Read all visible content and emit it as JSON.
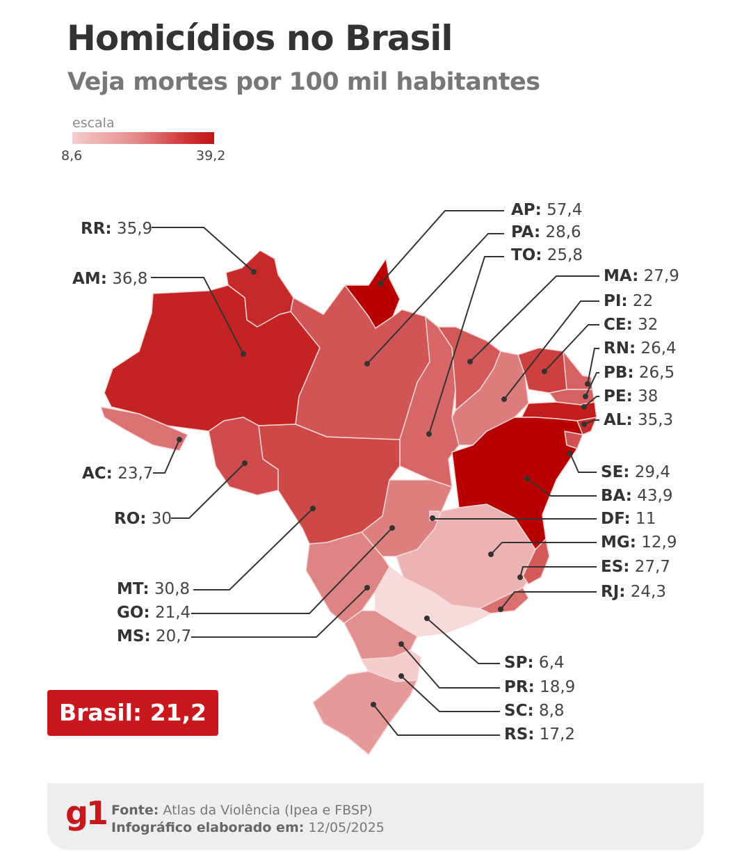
{
  "header": {
    "title": "Homicídios no Brasil",
    "subtitle": "Veja mortes por 100 mil habitantes"
  },
  "legend": {
    "label": "escala",
    "min": "8,6",
    "max": "39,2",
    "min_value": 8.6,
    "max_value": 39.2,
    "color_low": "#f4cdcd",
    "color_high": "#c01515"
  },
  "states": [
    {
      "code": "RR:",
      "value": "35,9",
      "v": 35.9
    },
    {
      "code": "AM:",
      "value": "36,8",
      "v": 36.8
    },
    {
      "code": "AC:",
      "value": "23,7",
      "v": 23.7
    },
    {
      "code": "RO:",
      "value": "30",
      "v": 30
    },
    {
      "code": "MT:",
      "value": "30,8",
      "v": 30.8
    },
    {
      "code": "GO:",
      "value": "21,4",
      "v": 21.4
    },
    {
      "code": "MS:",
      "value": "20,7",
      "v": 20.7
    },
    {
      "code": "AP:",
      "value": "57,4",
      "v": 57.4
    },
    {
      "code": "PA:",
      "value": "28,6",
      "v": 28.6
    },
    {
      "code": "TO:",
      "value": "25,8",
      "v": 25.8
    },
    {
      "code": "MA:",
      "value": "27,9",
      "v": 27.9
    },
    {
      "code": "PI:",
      "value": "22",
      "v": 22
    },
    {
      "code": "CE:",
      "value": "32",
      "v": 32
    },
    {
      "code": "RN:",
      "value": "26,4",
      "v": 26.4
    },
    {
      "code": "PB:",
      "value": "26,5",
      "v": 26.5
    },
    {
      "code": "PE:",
      "value": "38",
      "v": 38
    },
    {
      "code": "AL:",
      "value": "35,3",
      "v": 35.3
    },
    {
      "code": "SE:",
      "value": "29,4",
      "v": 29.4
    },
    {
      "code": "BA:",
      "value": "43,9",
      "v": 43.9
    },
    {
      "code": "DF:",
      "value": "11",
      "v": 11
    },
    {
      "code": "MG:",
      "value": "12,9",
      "v": 12.9
    },
    {
      "code": "ES:",
      "value": "27,7",
      "v": 27.7
    },
    {
      "code": "RJ:",
      "value": "24,3",
      "v": 24.3
    },
    {
      "code": "SP:",
      "value": "6,4",
      "v": 6.4
    },
    {
      "code": "PR:",
      "value": "18,9",
      "v": 18.9
    },
    {
      "code": "SC:",
      "value": "8,8",
      "v": 8.8
    },
    {
      "code": "RS:",
      "value": "17,2",
      "v": 17.2
    }
  ],
  "national": {
    "label": "Brasil: 21,2"
  },
  "footer": {
    "logo": "g1",
    "source_label": "Fonte:",
    "source_value": "Atlas da Violência (Ipea e FBSP)",
    "date_label": "Infográfico elaborado em:",
    "date_value": "12/05/2025"
  }
}
